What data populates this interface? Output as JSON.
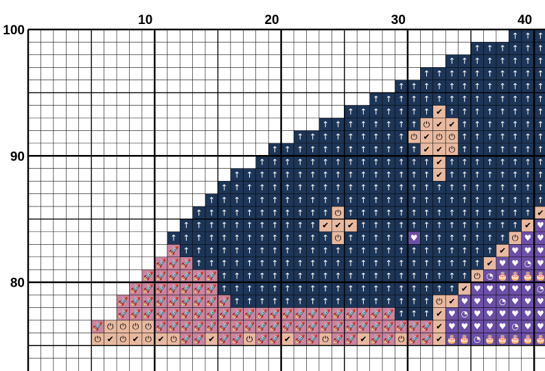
{
  "colors": {
    "navy": "#1d3557",
    "pink": "#c9849f",
    "peach": "#e8b9a0",
    "purple": "#6c4fa6",
    "grid": "#000000",
    "background": "#ffffff"
  },
  "column_labels": [
    {
      "value": 10,
      "text": "10"
    },
    {
      "value": 20,
      "text": "20"
    },
    {
      "value": 30,
      "text": "30"
    },
    {
      "value": 40,
      "text": "40"
    }
  ],
  "row_labels": [
    {
      "value": 100,
      "text": "100"
    },
    {
      "value": 90,
      "text": "90"
    },
    {
      "value": 80,
      "text": "80"
    }
  ],
  "symbols": {
    "navy": {
      "glyph": "↑",
      "name": "arrow-up-icon"
    },
    "pink": {
      "glyph": "🚀",
      "name": "rocket-icon"
    },
    "peach": {
      "glyph": "✔",
      "name": "check-icon"
    },
    "peach_power": {
      "glyph": "⏻",
      "name": "power-icon"
    },
    "purple": {
      "glyph": "♥",
      "name": "heart-icon"
    },
    "purple_cake": {
      "glyph": "🎂",
      "name": "cake-icon"
    },
    "purple_pizza": {
      "glyph": "◔",
      "name": "pizza-icon"
    }
  },
  "pattern": {
    "columns": [
      1,
      41
    ],
    "rows": [
      75,
      100
    ],
    "navy_diagonal_starts": [
      {
        "row": 99,
        "from_col": 39
      },
      {
        "row": 98,
        "from_col": 36
      },
      {
        "row": 97,
        "from_col": 34
      },
      {
        "row": 96,
        "from_col": 32
      },
      {
        "row": 95,
        "from_col": 30
      },
      {
        "row": 94,
        "from_col": 28
      },
      {
        "row": 93,
        "from_col": 26
      },
      {
        "row": 92,
        "from_col": 24
      },
      {
        "row": 91,
        "from_col": 22
      },
      {
        "row": 90,
        "from_col": 20
      },
      {
        "row": 89,
        "from_col": 19
      },
      {
        "row": 88,
        "from_col": 17
      },
      {
        "row": 87,
        "from_col": 16
      },
      {
        "row": 86,
        "from_col": 15
      },
      {
        "row": 85,
        "from_col": 14
      },
      {
        "row": 84,
        "from_col": 13
      },
      {
        "row": 83,
        "from_col": 12
      },
      {
        "row": 82,
        "from_col": 12
      },
      {
        "row": 81,
        "from_col": 12
      },
      {
        "row": 80,
        "from_col": 14
      },
      {
        "row": 79,
        "from_col": 16
      },
      {
        "row": 78,
        "from_col": 17
      },
      {
        "row": 77,
        "from_col": 30
      }
    ]
  }
}
